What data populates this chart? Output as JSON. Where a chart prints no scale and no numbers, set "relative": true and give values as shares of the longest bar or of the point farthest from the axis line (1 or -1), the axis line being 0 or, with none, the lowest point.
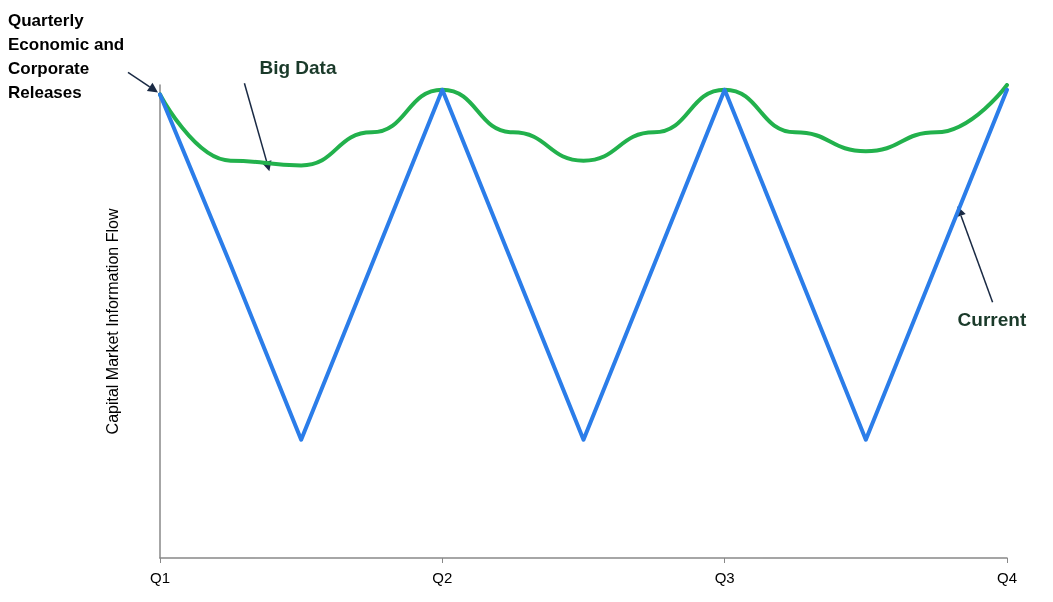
{
  "chart_data": {
    "type": "line",
    "relative": true,
    "ylabel": "Capital Market Information Flow",
    "categories": [
      "Q1",
      null,
      null,
      null,
      "Q2",
      null,
      null,
      null,
      "Q3",
      null,
      null,
      null,
      "Q4"
    ],
    "series": [
      {
        "name": "Big Data",
        "color": "#22b14c",
        "values": [
          0.98,
          0.84,
          0.83,
          0.9,
          0.99,
          0.9,
          0.84,
          0.9,
          0.99,
          0.9,
          0.86,
          0.9,
          1
        ]
      },
      {
        "name": "Current",
        "color": "#2b7de9",
        "values": [
          0.98,
          0.62,
          0.25,
          0.62,
          0.99,
          0.62,
          0.25,
          0.62,
          0.99,
          0.62,
          0.25,
          0.62,
          0.99
        ]
      }
    ],
    "annotations": [
      {
        "text": "Quarterly Economic and Corporate Releases",
        "x": "Q1",
        "y": 0.98
      }
    ],
    "grid": false,
    "legend": false,
    "marker": "none",
    "line_style": "solid"
  }
}
